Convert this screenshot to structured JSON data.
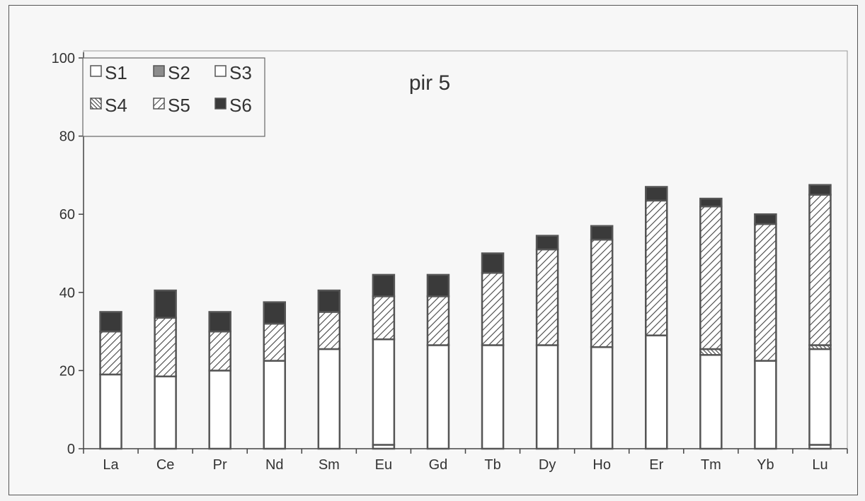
{
  "chart_data": {
    "type": "bar",
    "stacked": true,
    "title": "pir 5",
    "categories": [
      "La",
      "Ce",
      "Pr",
      "Nd",
      "Sm",
      "Eu",
      "Gd",
      "Tb",
      "Dy",
      "Ho",
      "Er",
      "Tm",
      "Yb",
      "Lu"
    ],
    "ylim": [
      0,
      100
    ],
    "yticks": [
      0,
      20,
      40,
      60,
      80,
      100
    ],
    "grid": false,
    "legend_position": "top-left",
    "series": [
      {
        "name": "S1",
        "pattern": "open",
        "values": [
          0,
          0,
          0,
          0,
          0,
          1,
          0,
          0,
          0,
          0,
          0,
          0,
          0,
          1
        ]
      },
      {
        "name": "S2",
        "pattern": "gray",
        "values": [
          0,
          0,
          0,
          0,
          0,
          0,
          0,
          0,
          0,
          0,
          0,
          0,
          0,
          0
        ]
      },
      {
        "name": "S3",
        "pattern": "open",
        "values": [
          19,
          18.5,
          20,
          22.5,
          25.5,
          27,
          26.5,
          26.5,
          26.5,
          26,
          29,
          24,
          22.5,
          24.5
        ]
      },
      {
        "name": "S4",
        "pattern": "dense-hatch",
        "values": [
          0,
          0,
          0,
          0,
          0,
          0,
          0,
          0,
          0,
          0,
          0,
          1.5,
          0,
          1
        ]
      },
      {
        "name": "S5",
        "pattern": "hatch",
        "values": [
          11,
          15,
          10,
          9.5,
          9.5,
          11,
          12.5,
          18.5,
          24.5,
          27.5,
          34.5,
          36.5,
          35,
          38.5
        ]
      },
      {
        "name": "S6",
        "pattern": "dark",
        "values": [
          5,
          7,
          5,
          5.5,
          5.5,
          5.5,
          5.5,
          5,
          3.5,
          3.5,
          3.5,
          2,
          2.5,
          2.5
        ]
      }
    ],
    "colors": {
      "S1": "#ffffff",
      "S2": "#8c8c8c",
      "S3": "#ffffff",
      "S4": "#ffffff",
      "S5": "#ffffff",
      "S6": "#3a3a3a",
      "bar_edge": "#555555"
    }
  }
}
